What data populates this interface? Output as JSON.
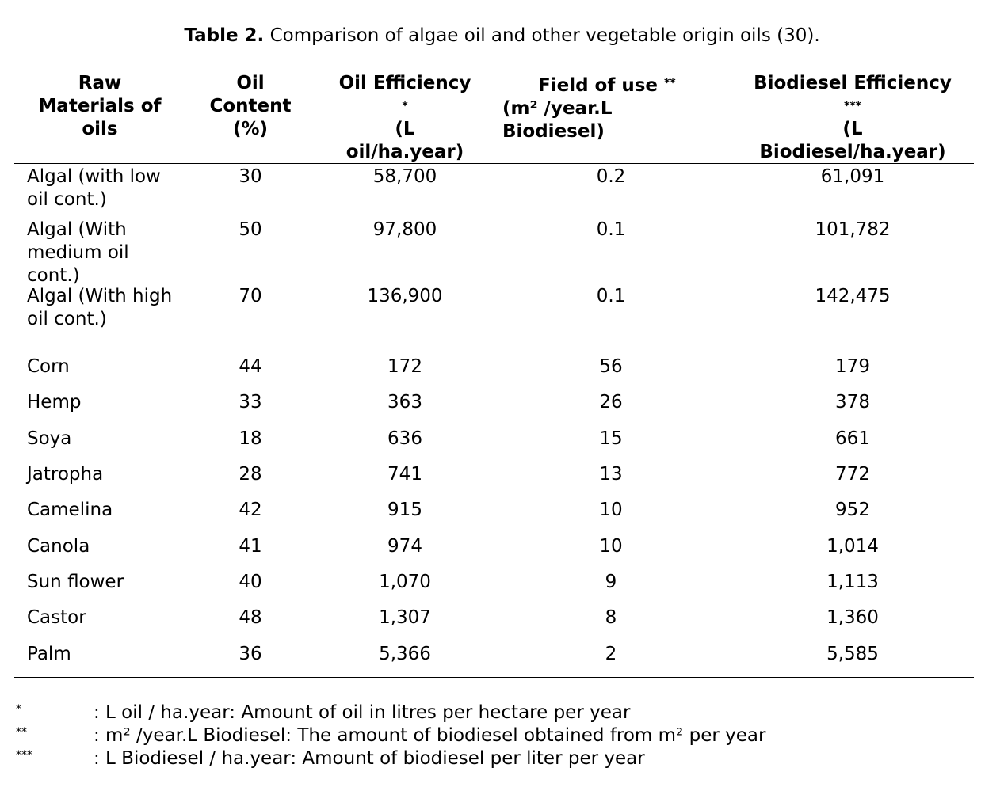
{
  "header_fragment": "Comparison of algae oil and other vegetable origin oils (30).",
  "caption": {
    "label": "Table 2.",
    "text": " Comparison of algae oil and other vegetable origin oils (30)."
  },
  "columns": {
    "raw": [
      "Raw",
      "Materials of",
      "oils"
    ],
    "oil_content": [
      "Oil",
      "Content",
      "(%)"
    ],
    "oil_eff": [
      "Oil Efficiency",
      "*",
      "",
      "(L",
      "oil/ha.year)"
    ],
    "field": [
      "Field of use",
      "**",
      "(m² /year.L",
      "Biodiesel)"
    ],
    "bio_eff": [
      "Biodiesel Efficiency",
      "***",
      "",
      "(L",
      "Biodiesel/ha.year)"
    ]
  },
  "rows": [
    {
      "name": "Algal (with low oil cont.)",
      "oil_content": "30",
      "oil_eff": "58,700",
      "field": "0.2",
      "bio_eff": "61,091"
    },
    {
      "name": "Algal (With medium oil cont.)",
      "oil_content": "50",
      "oil_eff": "97,800",
      "field": "0.1",
      "bio_eff": "101,782"
    },
    {
      "name": "Algal (With high oil cont.)",
      "oil_content": "70",
      "oil_eff": "136,900",
      "field": "0.1",
      "bio_eff": "142,475"
    },
    {
      "name": "Corn",
      "oil_content": "44",
      "oil_eff": "172",
      "field": "56",
      "bio_eff": "179"
    },
    {
      "name": "Hemp",
      "oil_content": "33",
      "oil_eff": "363",
      "field": "26",
      "bio_eff": "378"
    },
    {
      "name": "Soya",
      "oil_content": "18",
      "oil_eff": "636",
      "field": "15",
      "bio_eff": "661"
    },
    {
      "name": "Jatropha",
      "oil_content": "28",
      "oil_eff": "741",
      "field": "13",
      "bio_eff": "772"
    },
    {
      "name": "Camelina",
      "oil_content": "42",
      "oil_eff": "915",
      "field": "10",
      "bio_eff": "952"
    },
    {
      "name": "Canola",
      "oil_content": "41",
      "oil_eff": "974",
      "field": "10",
      "bio_eff": "1,014"
    },
    {
      "name": "Sun flower",
      "oil_content": "40",
      "oil_eff": "1,070",
      "field": "9",
      "bio_eff": "1,113"
    },
    {
      "name": "Castor",
      "oil_content": "48",
      "oil_eff": "1,307",
      "field": "8",
      "bio_eff": "1,360"
    },
    {
      "name": "Palm",
      "oil_content": "36",
      "oil_eff": "5,366",
      "field": "2",
      "bio_eff": "5,585"
    }
  ],
  "footnotes": [
    {
      "mark": "*",
      "text": ": L oil / ha.year: Amount of oil in litres per hectare per year"
    },
    {
      "mark": "**",
      "text": ": m² /year.L Biodiesel: The amount of biodiesel obtained from m² per year"
    },
    {
      "mark": "***",
      "text": ": L Biodiesel / ha.year: Amount of biodiesel per liter per year"
    }
  ]
}
